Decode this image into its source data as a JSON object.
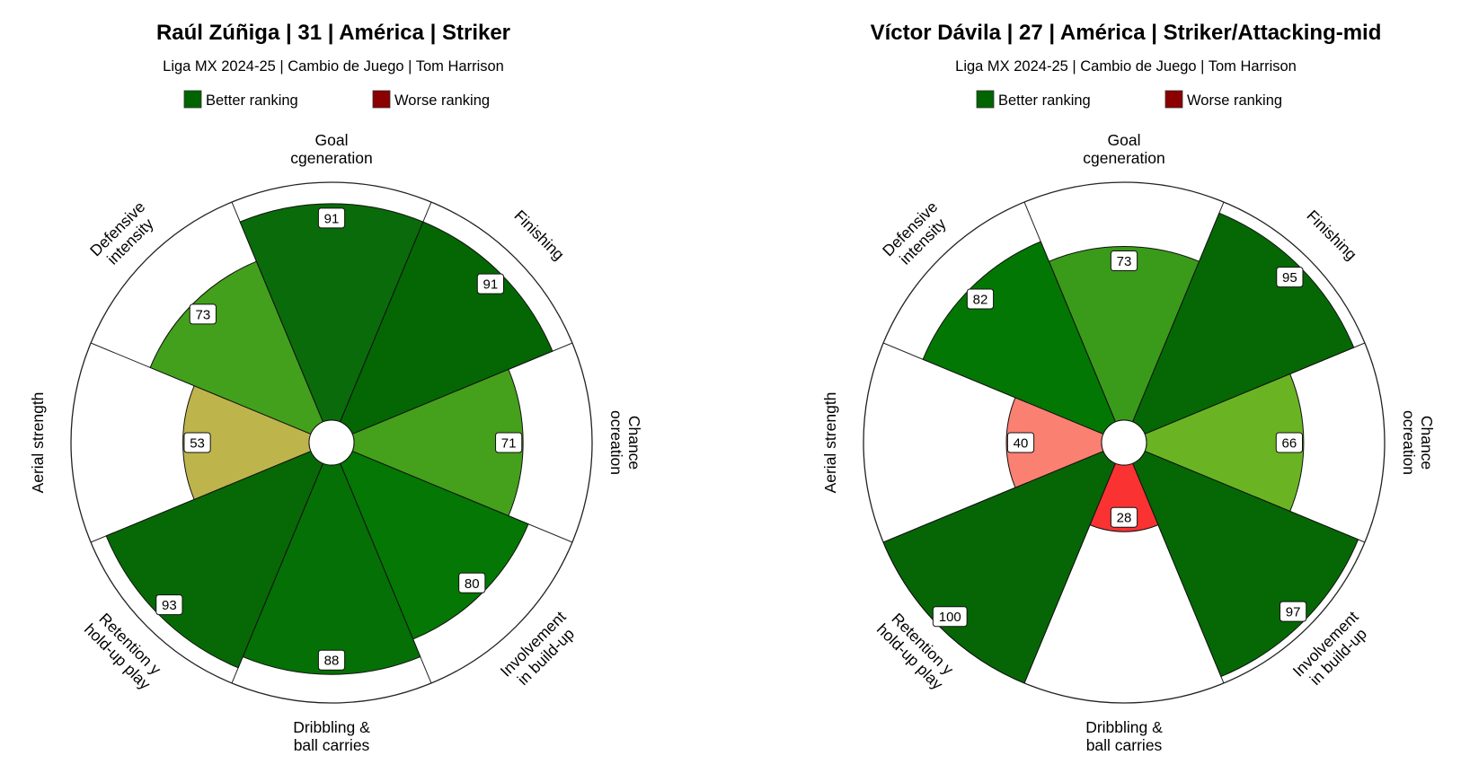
{
  "legend": {
    "better_label": "Better ranking",
    "worse_label": "Worse ranking",
    "better_color": "#006400",
    "worse_color": "#8b0000"
  },
  "chart_data": [
    {
      "type": "radial-bar",
      "title": "Raúl Zúñiga | 31 | América | Striker",
      "subtitle": "Liga MX 2024-25 | Cambio de Juego | Tom Harrison",
      "categories": [
        [
          "Goal",
          "cgeneration"
        ],
        [
          "Finishing"
        ],
        [
          "Chance",
          "ocreation"
        ],
        [
          "Involvement",
          "in build-up"
        ],
        [
          "Dribbling &",
          "ball carries"
        ],
        [
          "Retention y",
          "hold-up play"
        ],
        [
          "Aerial strength"
        ],
        [
          "Defensive",
          "intensity"
        ]
      ],
      "values": [
        91,
        91,
        71,
        80,
        88,
        93,
        53,
        73
      ],
      "colors": [
        "#0a6b0a",
        "#046704",
        "#45a01b",
        "#047704",
        "#057005",
        "#066906",
        "#beb44c",
        "#43a01c"
      ],
      "ylim": [
        0,
        100
      ]
    },
    {
      "type": "radial-bar",
      "title": "Víctor Dávila | 27 | América | Striker/Attacking-mid",
      "subtitle": "Liga MX 2024-25 | Cambio de Juego | Tom Harrison",
      "categories": [
        [
          "Goal",
          "cgeneration"
        ],
        [
          "Finishing"
        ],
        [
          "Chance",
          "ocreation"
        ],
        [
          "Involvement",
          "in build-up"
        ],
        [
          "Dribbling &",
          "ball carries"
        ],
        [
          "Retention y",
          "hold-up play"
        ],
        [
          "Aerial strength"
        ],
        [
          "Defensive",
          "intensity"
        ]
      ],
      "values": [
        73,
        95,
        66,
        97,
        28,
        100,
        40,
        82
      ],
      "colors": [
        "#3a9a19",
        "#056805",
        "#6ab423",
        "#056805",
        "#fa3232",
        "#066606",
        "#fa8072",
        "#037703"
      ],
      "ylim": [
        0,
        100
      ]
    }
  ]
}
